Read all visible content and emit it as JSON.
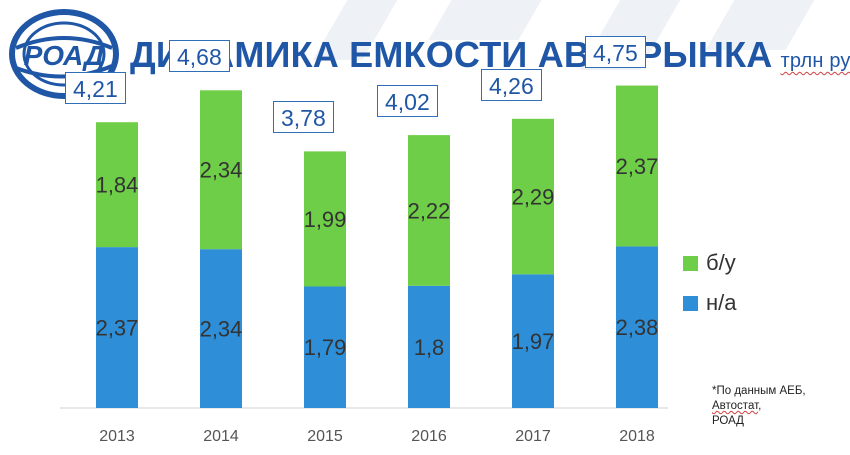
{
  "logo": {
    "text": "РОАД"
  },
  "title": {
    "main": "ДИНАМИКА ЕМКОСТИ АВТОРЫНКА",
    "unit": "трлн руб"
  },
  "chart_data": {
    "type": "bar",
    "stacked": true,
    "categories": [
      "2013",
      "2014",
      "2015",
      "2016",
      "2017",
      "2018"
    ],
    "series": [
      {
        "name": "н/а",
        "color": "#2e8fd8",
        "values": [
          2.37,
          2.34,
          1.79,
          1.8,
          1.97,
          2.38
        ],
        "labels": [
          "2,37",
          "2,34",
          "1,79",
          "1,8",
          "1,97",
          "2,38"
        ]
      },
      {
        "name": "б/у",
        "color": "#6fce47",
        "values": [
          1.84,
          2.34,
          1.99,
          2.22,
          2.29,
          2.37
        ],
        "labels": [
          "1,84",
          "2,34",
          "1,99",
          "2,22",
          "2,29",
          "2,37"
        ]
      }
    ],
    "totals": [
      "4,21",
      "4,68",
      "3,78",
      "4,02",
      "4,26",
      "4,75"
    ],
    "ylim": [
      0,
      5.2
    ],
    "grid": false,
    "legend_position": "right"
  },
  "footnote": {
    "line1": "*По данным АЕБ,",
    "line2": "Автостат",
    "line3": "РОАД"
  }
}
